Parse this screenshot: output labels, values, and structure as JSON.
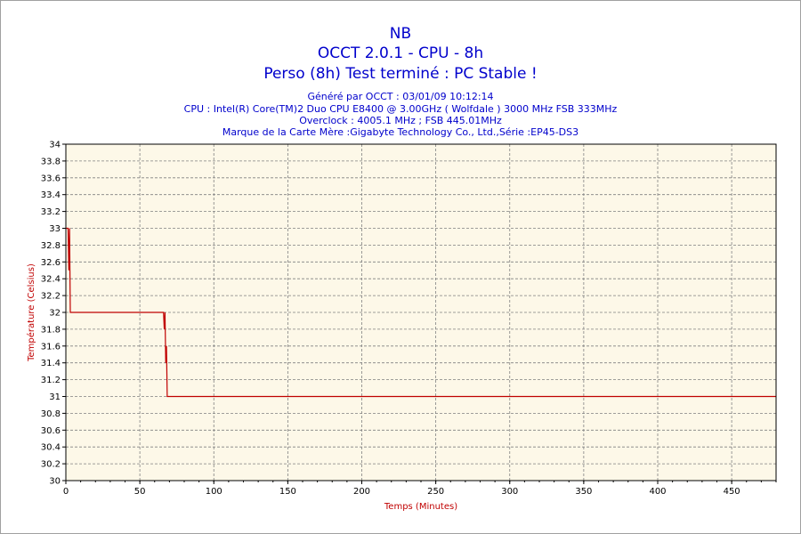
{
  "header": {
    "title_line1": "NB",
    "title_line2": "OCCT 2.0.1 - CPU - 8h",
    "title_line3": "Perso (8h) Test terminé : PC Stable !",
    "info_line1": "Généré par OCCT : 03/01/09 10:12:14",
    "info_line2": "CPU : Intel(R) Core(TM)2 Duo CPU E8400 @ 3.00GHz ( Wolfdale ) 3000 MHz FSB 333MHz",
    "info_line3": "Overclock : 4005.1 MHz ; FSB 445.01MHz",
    "info_line4": "Marque de la Carte Mère :Gigabyte Technology Co., Ltd.,Série :EP45-DS3"
  },
  "colors": {
    "title": "#0000cc",
    "plot_background": "#fdf8e8",
    "line": "#c00000",
    "grid": "#808080",
    "axis_label": "#c00000"
  },
  "chart_data": {
    "type": "line",
    "xlabel": "Temps (Minutes)",
    "ylabel": "Température (Celsius)",
    "xlim": [
      0,
      480
    ],
    "ylim": [
      30,
      34
    ],
    "xticks": [
      0,
      50,
      100,
      150,
      200,
      250,
      300,
      350,
      400,
      450
    ],
    "yticks": [
      30,
      30.2,
      30.4,
      30.6,
      30.8,
      31,
      31.2,
      31.4,
      31.6,
      31.8,
      32,
      32.2,
      32.4,
      32.6,
      32.8,
      33,
      33.2,
      33.4,
      33.6,
      33.8,
      34
    ],
    "grid": true,
    "series": [
      {
        "x": [
          0,
          1.5,
          2,
          2.5,
          3,
          66,
          66.5,
          67,
          67.5,
          68,
          68.5,
          69,
          480
        ],
        "y": [
          33,
          33,
          32.5,
          33,
          32,
          32,
          31.8,
          32,
          31.4,
          31.6,
          31,
          31,
          31
        ]
      }
    ]
  }
}
